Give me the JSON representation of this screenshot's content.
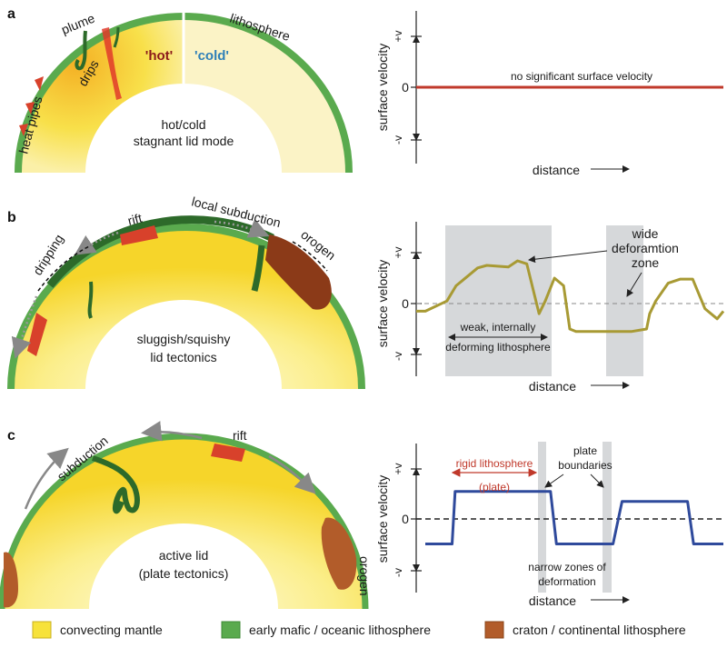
{
  "panels": {
    "a": {
      "letter": "a",
      "plume": "plume",
      "drips": "drips",
      "heat_pipes": "heat pipes",
      "hot": "'hot'",
      "cold": "'cold'",
      "lithosphere": "lithosphere",
      "mode_line1": "hot/cold",
      "mode_line2": "stagnant lid mode",
      "annotation": "no significant surface velocity"
    },
    "b": {
      "letter": "b",
      "dripping": "dripping",
      "rift": "rift",
      "local_subduction": "local subduction",
      "orogen": "orogen",
      "mode_line1": "sluggish/squishy",
      "mode_line2": "lid tectonics",
      "wide_line1": "wide",
      "wide_line2": "deforamtion",
      "wide_line3": "zone",
      "weak_line1": "weak, internally",
      "weak_line2": "deforming lithosphere"
    },
    "c": {
      "letter": "c",
      "subduction": "subduction",
      "rift": "rift",
      "orogen": "orogen",
      "mode_line1": "active lid",
      "mode_line2": "(plate tectonics)",
      "rigid": "rigid lithosphere",
      "plate": "(plate)",
      "pb_line1": "plate",
      "pb_line2": "boundaries",
      "nz_line1": "narrow zones of",
      "nz_line2": "deformation"
    }
  },
  "axes": {
    "ylabel": "surface velocity",
    "xlabel": "distance",
    "y_pos": "+v",
    "y_zero": "0",
    "y_neg": "-v"
  },
  "legend": {
    "mantle": "convecting mantle",
    "oceanic": "early mafic / oceanic lithosphere",
    "craton": "craton / continental lithosphere"
  },
  "colors": {
    "mantle": "#f7e23a",
    "oceanic": "#5aaa4e",
    "craton": "#b25c2a",
    "line_a": "#c0392b",
    "line_b": "#a89a34",
    "line_c": "#2f4a9c",
    "shade": "#d6d8da"
  },
  "chart_data": [
    {
      "type": "line",
      "x": [
        0,
        1
      ],
      "series": [
        {
          "values": [
            0,
            0
          ]
        }
      ],
      "xlabel": "distance",
      "ylabel": "surface velocity",
      "ylim": [
        -1,
        1
      ]
    },
    {
      "type": "line",
      "x": [
        0,
        0.03,
        0.1,
        0.13,
        0.17,
        0.2,
        0.23,
        0.3,
        0.33,
        0.36,
        0.4,
        0.42,
        0.45,
        0.48,
        0.5,
        0.52,
        0.56,
        0.6,
        0.7,
        0.75,
        0.76,
        0.78,
        0.82,
        0.86,
        0.9,
        0.94,
        0.98,
        1
      ],
      "series": [
        {
          "values": [
            -0.15,
            -0.15,
            0.05,
            0.35,
            0.55,
            0.7,
            0.75,
            0.72,
            0.84,
            0.78,
            -0.2,
            0.05,
            0.5,
            0.35,
            -0.5,
            -0.55,
            -0.55,
            -0.55,
            -0.55,
            -0.5,
            -0.2,
            0.05,
            0.4,
            0.48,
            0.48,
            -0.1,
            -0.3,
            -0.15
          ]
        }
      ],
      "xlabel": "distance",
      "ylabel": "surface velocity",
      "ylim": [
        -1,
        1
      ]
    },
    {
      "type": "line",
      "x": [
        0,
        0.09,
        0.1,
        0.42,
        0.44,
        0.63,
        0.66,
        0.88,
        0.9,
        1
      ],
      "series": [
        {
          "values": [
            -0.5,
            -0.5,
            0.55,
            0.55,
            -0.5,
            -0.5,
            0.35,
            0.35,
            -0.5,
            -0.5
          ]
        }
      ],
      "xlabel": "distance",
      "ylabel": "surface velocity",
      "ylim": [
        -1,
        1
      ]
    }
  ]
}
